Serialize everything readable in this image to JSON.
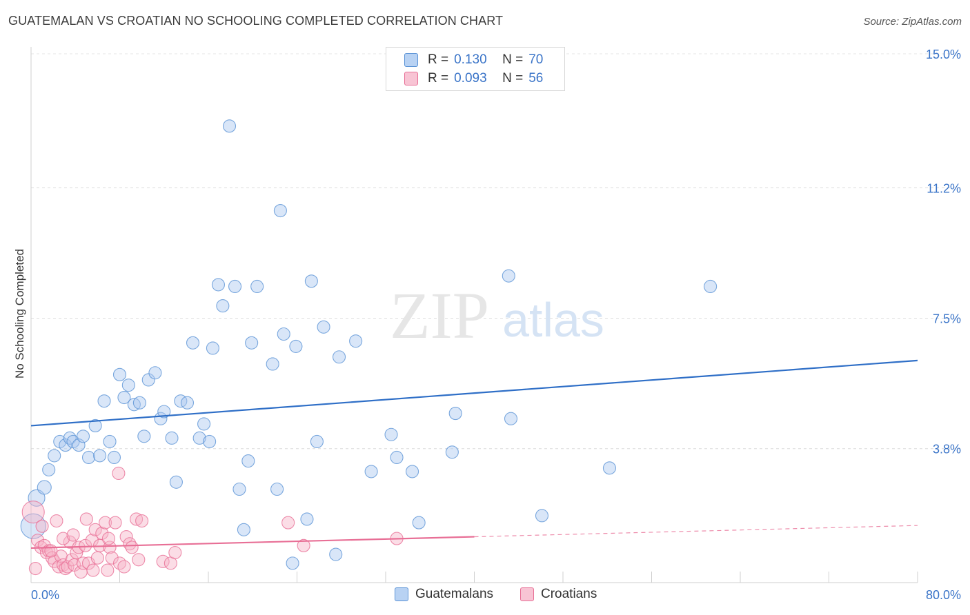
{
  "header": {
    "title": "GUATEMALAN VS CROATIAN NO SCHOOLING COMPLETED CORRELATION CHART",
    "source": "Source: ZipAtlas.com"
  },
  "watermark": {
    "zip": "ZIP",
    "atlas": "atlas"
  },
  "legend": {
    "r_label": "R =",
    "n_label": "N =",
    "series": [
      {
        "name": "Guatemalans",
        "r": "0.130",
        "n": "70",
        "color": "#5b93d6",
        "fill": "#b8d2f3"
      },
      {
        "name": "Croatians",
        "r": "0.093",
        "n": "56",
        "color": "#e86f96",
        "fill": "#f8c4d4"
      }
    ]
  },
  "chart_data": {
    "type": "scatter",
    "title": "GUATEMALAN VS CROATIAN NO SCHOOLING COMPLETED CORRELATION CHART",
    "xlabel": "",
    "ylabel": "No Schooling Completed",
    "xlim": [
      0,
      80
    ],
    "ylim": [
      0,
      15
    ],
    "x_tick_labels": [
      "0.0%",
      "80.0%"
    ],
    "y_ticks": [
      3.8,
      7.5,
      11.2,
      15.0
    ],
    "y_tick_labels": [
      "3.8%",
      "7.5%",
      "11.2%",
      "15.0%"
    ],
    "x_gridlines": [
      0,
      8,
      16,
      24,
      32,
      40,
      48,
      56,
      64,
      72,
      80
    ],
    "series": [
      {
        "name": "Guatemalans",
        "color": "#5b93d6",
        "trend": {
          "x0": 0,
          "y0": 4.45,
          "x1": 80,
          "y1": 6.3,
          "dash_from": null
        },
        "points": [
          [
            0.2,
            1.6,
            18
          ],
          [
            0.5,
            2.4,
            12
          ],
          [
            1.2,
            2.7,
            10
          ],
          [
            1.6,
            3.2,
            9
          ],
          [
            2.1,
            3.6,
            9
          ],
          [
            2.6,
            4.0,
            9
          ],
          [
            3.1,
            3.9,
            9
          ],
          [
            3.5,
            4.1,
            9
          ],
          [
            3.8,
            4.0,
            9
          ],
          [
            4.3,
            3.9,
            9
          ],
          [
            4.7,
            4.15,
            9
          ],
          [
            5.2,
            3.55,
            9
          ],
          [
            5.8,
            4.45,
            9
          ],
          [
            6.2,
            3.6,
            9
          ],
          [
            6.6,
            5.15,
            9
          ],
          [
            7.1,
            4.0,
            9
          ],
          [
            7.5,
            3.55,
            9
          ],
          [
            8.0,
            5.9,
            9
          ],
          [
            8.4,
            5.25,
            9
          ],
          [
            8.8,
            5.6,
            9
          ],
          [
            9.3,
            5.05,
            9
          ],
          [
            9.8,
            5.1,
            9
          ],
          [
            10.2,
            4.15,
            9
          ],
          [
            10.6,
            5.75,
            9
          ],
          [
            11.2,
            5.95,
            9
          ],
          [
            11.7,
            4.65,
            9
          ],
          [
            12.0,
            4.85,
            9
          ],
          [
            12.7,
            4.1,
            9
          ],
          [
            13.1,
            2.85,
            9
          ],
          [
            13.5,
            5.15,
            9
          ],
          [
            14.1,
            5.1,
            9
          ],
          [
            14.6,
            6.8,
            9
          ],
          [
            15.2,
            4.1,
            9
          ],
          [
            15.6,
            4.5,
            9
          ],
          [
            16.1,
            4.0,
            9
          ],
          [
            16.4,
            6.65,
            9
          ],
          [
            16.9,
            8.45,
            9
          ],
          [
            17.3,
            7.85,
            9
          ],
          [
            17.9,
            12.95,
            9
          ],
          [
            18.4,
            8.4,
            9
          ],
          [
            18.8,
            2.65,
            9
          ],
          [
            19.2,
            1.5,
            9
          ],
          [
            19.6,
            3.45,
            9
          ],
          [
            19.9,
            6.8,
            9
          ],
          [
            20.4,
            8.4,
            9
          ],
          [
            21.8,
            6.2,
            9
          ],
          [
            22.2,
            2.65,
            9
          ],
          [
            22.5,
            10.55,
            9
          ],
          [
            22.8,
            7.05,
            9
          ],
          [
            23.6,
            0.55,
            9
          ],
          [
            23.9,
            6.7,
            9
          ],
          [
            24.9,
            1.8,
            9
          ],
          [
            25.3,
            8.55,
            9
          ],
          [
            25.8,
            4.0,
            9
          ],
          [
            26.4,
            7.25,
            9
          ],
          [
            27.5,
            0.8,
            9
          ],
          [
            27.8,
            6.4,
            9
          ],
          [
            29.3,
            6.85,
            9
          ],
          [
            30.7,
            3.15,
            9
          ],
          [
            32.5,
            4.2,
            9
          ],
          [
            33.0,
            3.55,
            9
          ],
          [
            34.4,
            3.15,
            9
          ],
          [
            35.0,
            1.7,
            9
          ],
          [
            38.0,
            3.7,
            9
          ],
          [
            38.3,
            4.8,
            9
          ],
          [
            43.1,
            8.7,
            9
          ],
          [
            43.3,
            4.65,
            9
          ],
          [
            46.1,
            1.9,
            9
          ],
          [
            52.2,
            3.25,
            9
          ],
          [
            61.3,
            8.4,
            9
          ]
        ]
      },
      {
        "name": "Croatians",
        "color": "#e86f96",
        "trend": {
          "x0": 0,
          "y0": 0.98,
          "x1": 80,
          "y1": 1.62,
          "dash_from": 40
        },
        "points": [
          [
            0.2,
            2.0,
            16
          ],
          [
            0.6,
            1.2,
            9
          ],
          [
            0.9,
            1.0,
            9
          ],
          [
            1.2,
            1.05,
            9
          ],
          [
            1.4,
            0.85,
            9
          ],
          [
            1.6,
            0.9,
            9
          ],
          [
            1.9,
            0.7,
            9
          ],
          [
            2.1,
            0.6,
            9
          ],
          [
            2.3,
            1.75,
            9
          ],
          [
            2.5,
            0.45,
            9
          ],
          [
            2.7,
            0.75,
            9
          ],
          [
            2.9,
            0.5,
            9
          ],
          [
            3.1,
            0.4,
            9
          ],
          [
            3.3,
            0.45,
            9
          ],
          [
            3.5,
            1.15,
            9
          ],
          [
            3.7,
            0.65,
            9
          ],
          [
            3.9,
            0.5,
            9
          ],
          [
            4.1,
            0.85,
            9
          ],
          [
            4.3,
            1.0,
            9
          ],
          [
            4.5,
            0.3,
            9
          ],
          [
            4.7,
            0.55,
            9
          ],
          [
            4.9,
            1.05,
            9
          ],
          [
            5.0,
            1.8,
            9
          ],
          [
            5.2,
            0.55,
            9
          ],
          [
            5.5,
            1.2,
            9
          ],
          [
            5.8,
            1.5,
            9
          ],
          [
            6.0,
            0.7,
            9
          ],
          [
            6.2,
            1.05,
            9
          ],
          [
            6.4,
            1.4,
            9
          ],
          [
            6.7,
            1.7,
            9
          ],
          [
            6.9,
            0.35,
            9
          ],
          [
            7.1,
            1.0,
            9
          ],
          [
            7.3,
            0.7,
            9
          ],
          [
            7.6,
            1.7,
            9
          ],
          [
            7.9,
            3.1,
            9
          ],
          [
            8.0,
            0.55,
            9
          ],
          [
            8.4,
            0.45,
            9
          ],
          [
            8.6,
            1.3,
            9
          ],
          [
            8.9,
            1.1,
            9
          ],
          [
            9.1,
            1.0,
            9
          ],
          [
            9.5,
            1.8,
            9
          ],
          [
            9.7,
            0.65,
            9
          ],
          [
            10.0,
            1.75,
            9
          ],
          [
            11.9,
            0.6,
            9
          ],
          [
            12.6,
            0.55,
            9
          ],
          [
            13.0,
            0.85,
            9
          ],
          [
            23.2,
            1.7,
            9
          ],
          [
            24.6,
            1.05,
            9
          ],
          [
            33.0,
            1.25,
            9
          ],
          [
            0.4,
            0.4,
            9
          ],
          [
            1.0,
            1.6,
            9
          ],
          [
            1.8,
            0.9,
            9
          ],
          [
            2.9,
            1.25,
            9
          ],
          [
            3.8,
            1.35,
            9
          ],
          [
            5.6,
            0.35,
            9
          ],
          [
            7.0,
            1.25,
            9
          ]
        ]
      }
    ]
  }
}
